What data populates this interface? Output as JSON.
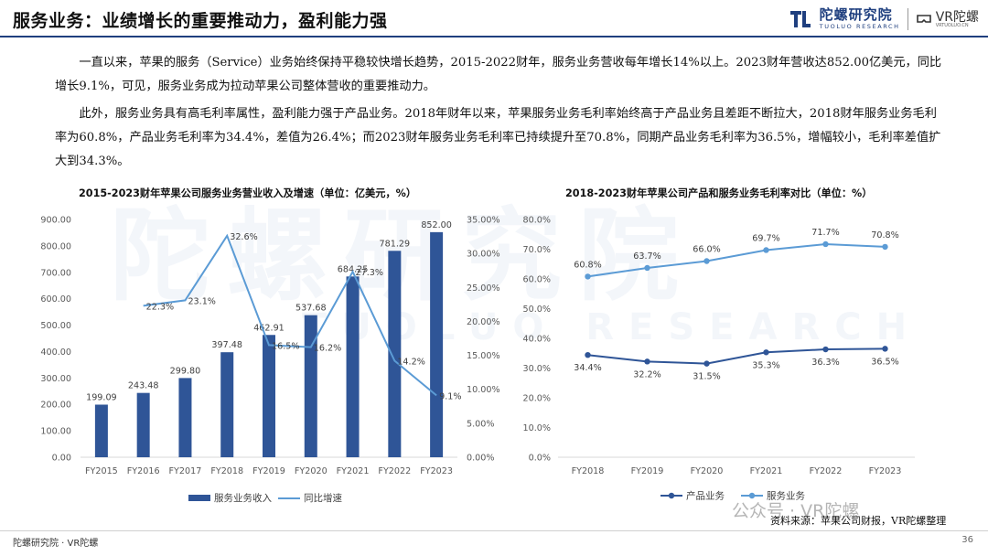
{
  "header": {
    "title": "服务业务：业绩增长的重要推动力，盈利能力强",
    "brand_cn": "陀螺研究院",
    "brand_en": "TUOLUO RESEARCH",
    "vr_logo": "VR陀螺",
    "vr_sub": "VRTUOLUO.CN",
    "rule_color": "#1f3f7f"
  },
  "paragraphs": [
    "一直以来，苹果的服务（Service）业务始终保持平稳较快增长趋势，2015-2022财年，服务业务营收每年增长14%以上。2023财年营收达852.00亿美元，同比增长9.1%，可见，服务业务成为拉动苹果公司整体营收的重要推动力。",
    "此外，服务业务具有高毛利率属性，盈利能力强于产品业务。2018年财年以来，苹果服务业务毛利率始终高于产品业务且差距不断拉大，2018财年服务业务毛利率为60.8%，产品业务毛利率为34.4%，差值为26.4%；而2023财年服务业务毛利率已持续提升至70.8%，同期产品业务毛利率为36.5%，增幅较小，毛利率差值扩大到34.3%。"
  ],
  "watermark": "陀螺研究院",
  "watermark_en": "TUOLUO RESEARCH",
  "chart_data": [
    {
      "type": "bar",
      "title": "2015-2023财年苹果公司服务业务营业收入及增速（单位：亿美元，%）",
      "categories": [
        "FY2015",
        "FY2016",
        "FY2017",
        "FY2018",
        "FY2019",
        "FY2020",
        "FY2021",
        "FY2022",
        "FY2023"
      ],
      "series": [
        {
          "name": "服务业务收入",
          "type": "bar",
          "axis": "left",
          "color": "#2f5597",
          "values": [
            199.09,
            243.48,
            299.8,
            397.48,
            462.91,
            537.68,
            684.25,
            781.29,
            852.0
          ],
          "labels": [
            "199.09",
            "243.48",
            "299.80",
            "397.48",
            "462.91",
            "537.68",
            "684.25",
            "781.29",
            "852.00"
          ]
        },
        {
          "name": "同比增速",
          "type": "line",
          "axis": "right",
          "color": "#5b9bd5",
          "values": [
            null,
            22.3,
            23.1,
            32.6,
            16.5,
            16.2,
            27.3,
            14.2,
            9.1
          ],
          "labels": [
            "",
            "22.3%",
            "23.1%",
            "32.6%",
            "16.5%",
            "16.2%",
            "27.3%",
            "14.2%",
            "9.1%"
          ]
        }
      ],
      "y_left": {
        "min": 0,
        "max": 900,
        "step": 100,
        "ticks": [
          "0.00",
          "100.00",
          "200.00",
          "300.00",
          "400.00",
          "500.00",
          "600.00",
          "700.00",
          "800.00",
          "900.00"
        ]
      },
      "y_right": {
        "min": 0,
        "max": 35,
        "step": 5,
        "ticks": [
          "0.00%",
          "5.00%",
          "10.00%",
          "15.00%",
          "20.00%",
          "25.00%",
          "30.00%",
          "35.00%"
        ]
      },
      "grid": false,
      "legend_position": "bottom"
    },
    {
      "type": "line",
      "title": "2018-2023财年苹果公司产品和服务业务毛利率对比（单位：%）",
      "categories": [
        "FY2018",
        "FY2019",
        "FY2020",
        "FY2021",
        "FY2022",
        "FY2023"
      ],
      "series": [
        {
          "name": "产品业务",
          "color": "#2f5597",
          "values": [
            34.4,
            32.2,
            31.5,
            35.3,
            36.3,
            36.5
          ],
          "labels": [
            "34.4%",
            "32.2%",
            "31.5%",
            "35.3%",
            "36.3%",
            "36.5%"
          ]
        },
        {
          "name": "服务业务",
          "color": "#5b9bd5",
          "values": [
            60.8,
            63.7,
            66.0,
            69.7,
            71.7,
            70.8
          ],
          "labels": [
            "60.8%",
            "63.7%",
            "66.0%",
            "69.7%",
            "71.7%",
            "70.8%"
          ]
        }
      ],
      "y": {
        "min": 0,
        "max": 80,
        "step": 10,
        "ticks": [
          "0.0%",
          "10.0%",
          "20.0%",
          "30.0%",
          "40.0%",
          "50.0%",
          "60.0%",
          "70.0%",
          "80.0%"
        ]
      },
      "grid": false,
      "legend_position": "bottom"
    }
  ],
  "source": "资料来源：苹果公司财报，VR陀螺整理",
  "wechat_watermark": "公众号 · VR陀螺",
  "footer": {
    "left": "陀螺研究院 · VR陀螺",
    "page": "36"
  }
}
